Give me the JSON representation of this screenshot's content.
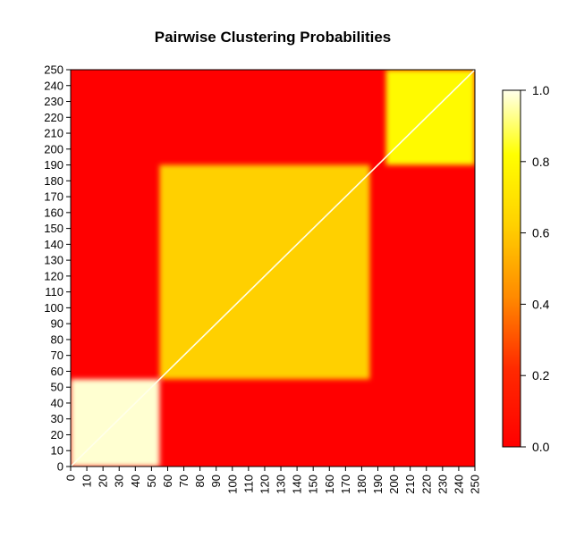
{
  "chart_data": {
    "type": "heatmap",
    "title": "Pairwise Clustering Probabilities",
    "xlabel": "",
    "ylabel": "",
    "x_ticks": [
      "0",
      "10",
      "20",
      "30",
      "40",
      "50",
      "60",
      "70",
      "80",
      "90",
      "100",
      "110",
      "120",
      "130",
      "140",
      "150",
      "160",
      "170",
      "180",
      "190",
      "200",
      "210",
      "220",
      "230",
      "240",
      "250"
    ],
    "y_ticks": [
      "0",
      "10",
      "20",
      "30",
      "40",
      "50",
      "60",
      "70",
      "80",
      "90",
      "100",
      "110",
      "120",
      "130",
      "140",
      "150",
      "160",
      "170",
      "180",
      "190",
      "200",
      "210",
      "220",
      "230",
      "240",
      "250"
    ],
    "xlim": [
      0,
      250
    ],
    "ylim": [
      0,
      250
    ],
    "diagonal_value": 1.0,
    "blocks": [
      {
        "x_range": [
          0,
          55
        ],
        "y_range": [
          0,
          55
        ],
        "value": 0.98
      },
      {
        "x_range": [
          55,
          185
        ],
        "y_range": [
          55,
          190
        ],
        "value": 0.62
      },
      {
        "x_range": [
          195,
          250
        ],
        "y_range": [
          190,
          250
        ],
        "value": 0.8
      },
      {
        "x_range": [
          0,
          250
        ],
        "y_range": [
          0,
          250
        ],
        "value": 0.0,
        "note": "off-block background"
      }
    ],
    "colorbar": {
      "ticks": [
        "0.0",
        "0.2",
        "0.4",
        "0.6",
        "0.8",
        "1.0"
      ],
      "range": [
        0,
        1
      ],
      "colors": [
        "#ff0000",
        "#ff7f00",
        "#ffd500",
        "#ffff00",
        "#ffffe8"
      ]
    }
  }
}
